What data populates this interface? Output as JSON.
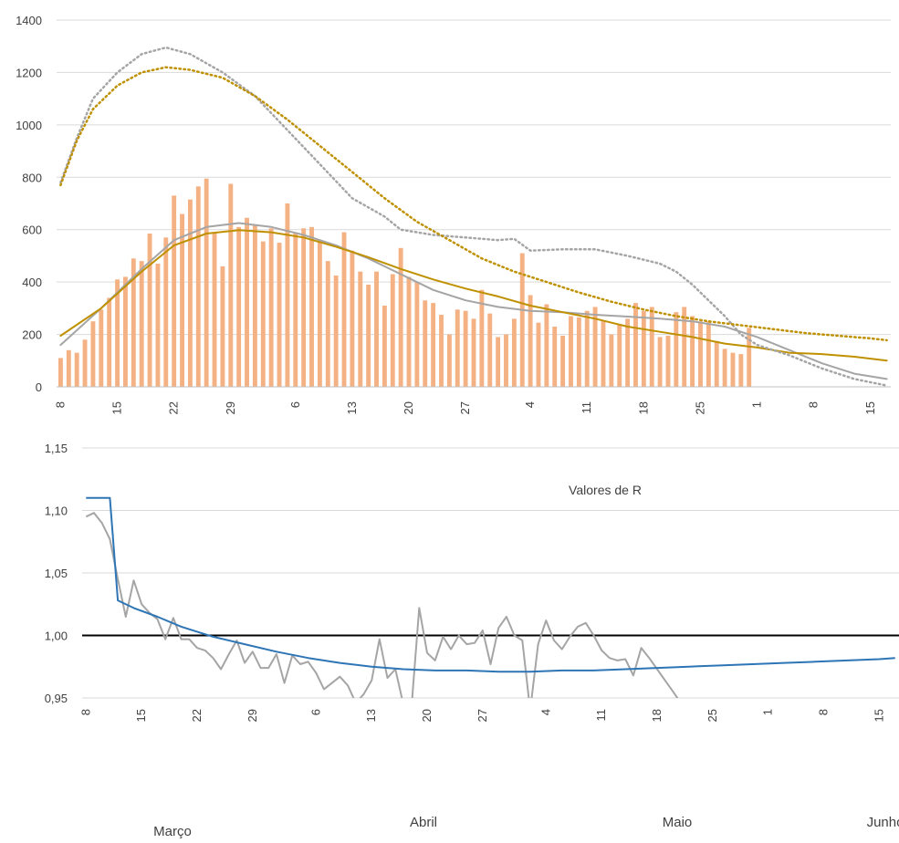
{
  "chart_data": [
    {
      "type": "bar",
      "title": "",
      "xlabel": "",
      "ylabel": "",
      "ylim": [
        0,
        1400
      ],
      "yticks": [
        0,
        200,
        400,
        600,
        800,
        1000,
        1200,
        1400
      ],
      "x_tick_labels": [
        "8",
        "15",
        "22",
        "29",
        "6",
        "13",
        "20",
        "27",
        "4",
        "11",
        "18",
        "25",
        "1",
        "8",
        "15"
      ],
      "x_tick_day_index": [
        0,
        7,
        14,
        21,
        29,
        36,
        43,
        50,
        58,
        65,
        72,
        79,
        86,
        93,
        100
      ],
      "grid": true,
      "legend": "none",
      "colors": {
        "bars": "#f4b183",
        "grey": "#a5a5a5",
        "gold": "#bf9000",
        "dotted_grey": "#a5a5a5",
        "dotted_gold": "#bf9000",
        "grid": "#d9d9d9"
      },
      "bars": [
        110,
        140,
        130,
        180,
        250,
        295,
        340,
        410,
        420,
        490,
        480,
        585,
        470,
        570,
        730,
        660,
        715,
        765,
        795,
        590,
        460,
        775,
        610,
        645,
        620,
        555,
        605,
        550,
        700,
        585,
        605,
        610,
        560,
        480,
        425,
        590,
        520,
        440,
        390,
        440,
        310,
        430,
        530,
        420,
        400,
        330,
        320,
        275,
        200,
        295,
        290,
        260,
        370,
        280,
        190,
        200,
        260,
        510,
        350,
        245,
        315,
        230,
        195,
        270,
        265,
        290,
        305,
        250,
        200,
        240,
        260,
        320,
        290,
        305,
        190,
        195,
        285,
        305,
        270,
        250,
        250,
        175,
        145,
        130,
        125,
        225
      ],
      "series": [
        {
          "style": "solid-grey",
          "points": [
            [
              0,
              160
            ],
            [
              5,
              300
            ],
            [
              10,
              450
            ],
            [
              14,
              560
            ],
            [
              18,
              610
            ],
            [
              22,
              625
            ],
            [
              26,
              610
            ],
            [
              30,
              580
            ],
            [
              34,
              540
            ],
            [
              38,
              490
            ],
            [
              42,
              430
            ],
            [
              46,
              370
            ],
            [
              50,
              330
            ],
            [
              54,
              305
            ],
            [
              58,
              290
            ],
            [
              62,
              285
            ],
            [
              66,
              275
            ],
            [
              70,
              268
            ],
            [
              74,
              260
            ],
            [
              78,
              250
            ],
            [
              82,
              230
            ],
            [
              86,
              190
            ],
            [
              90,
              140
            ],
            [
              94,
              90
            ],
            [
              98,
              50
            ],
            [
              102,
              30
            ]
          ]
        },
        {
          "style": "solid-gold",
          "points": [
            [
              0,
              195
            ],
            [
              5,
              300
            ],
            [
              10,
              440
            ],
            [
              14,
              540
            ],
            [
              18,
              585
            ],
            [
              22,
              598
            ],
            [
              26,
              590
            ],
            [
              30,
              570
            ],
            [
              34,
              535
            ],
            [
              38,
              495
            ],
            [
              42,
              450
            ],
            [
              46,
              410
            ],
            [
              50,
              375
            ],
            [
              54,
              345
            ],
            [
              58,
              310
            ],
            [
              62,
              285
            ],
            [
              66,
              260
            ],
            [
              70,
              230
            ],
            [
              74,
              210
            ],
            [
              78,
              190
            ],
            [
              82,
              165
            ],
            [
              86,
              150
            ],
            [
              90,
              130
            ],
            [
              94,
              125
            ],
            [
              98,
              115
            ],
            [
              102,
              100
            ]
          ]
        },
        {
          "style": "dotted-grey",
          "points": [
            [
              0,
              780
            ],
            [
              2,
              950
            ],
            [
              4,
              1100
            ],
            [
              7,
              1200
            ],
            [
              10,
              1270
            ],
            [
              13,
              1295
            ],
            [
              16,
              1270
            ],
            [
              20,
              1200
            ],
            [
              24,
              1110
            ],
            [
              28,
              980
            ],
            [
              32,
              850
            ],
            [
              36,
              720
            ],
            [
              40,
              650
            ],
            [
              42,
              600
            ],
            [
              46,
              580
            ],
            [
              50,
              570
            ],
            [
              54,
              560
            ],
            [
              56,
              565
            ],
            [
              58,
              520
            ],
            [
              62,
              525
            ],
            [
              66,
              525
            ],
            [
              70,
              500
            ],
            [
              74,
              470
            ],
            [
              76,
              440
            ],
            [
              78,
              390
            ],
            [
              80,
              330
            ],
            [
              82,
              270
            ],
            [
              84,
              200
            ],
            [
              86,
              160
            ],
            [
              90,
              120
            ],
            [
              94,
              70
            ],
            [
              98,
              30
            ],
            [
              102,
              5
            ]
          ]
        },
        {
          "style": "dotted-gold",
          "points": [
            [
              0,
              770
            ],
            [
              2,
              940
            ],
            [
              4,
              1060
            ],
            [
              7,
              1150
            ],
            [
              10,
              1200
            ],
            [
              13,
              1220
            ],
            [
              16,
              1210
            ],
            [
              20,
              1180
            ],
            [
              24,
              1110
            ],
            [
              28,
              1020
            ],
            [
              32,
              920
            ],
            [
              36,
              820
            ],
            [
              40,
              720
            ],
            [
              44,
              630
            ],
            [
              48,
              560
            ],
            [
              52,
              490
            ],
            [
              56,
              440
            ],
            [
              60,
              400
            ],
            [
              64,
              360
            ],
            [
              68,
              325
            ],
            [
              72,
              295
            ],
            [
              76,
              270
            ],
            [
              80,
              250
            ],
            [
              84,
              235
            ],
            [
              88,
              220
            ],
            [
              92,
              205
            ],
            [
              96,
              195
            ],
            [
              100,
              185
            ],
            [
              102,
              178
            ]
          ]
        }
      ]
    },
    {
      "type": "line",
      "title": "Valores de R",
      "xlabel": "",
      "ylabel": "",
      "ylim": [
        0.95,
        1.15
      ],
      "yticks": [
        "0,95",
        "1,00",
        "1,05",
        "1,10",
        "1,15"
      ],
      "ytick_values": [
        0.95,
        1.0,
        1.05,
        1.1,
        1.15
      ],
      "x_tick_labels": [
        "8",
        "15",
        "22",
        "29",
        "6",
        "13",
        "20",
        "27",
        "4",
        "11",
        "18",
        "25",
        "1",
        "8",
        "15"
      ],
      "x_tick_day_index": [
        0,
        7,
        14,
        21,
        29,
        36,
        43,
        50,
        58,
        65,
        72,
        79,
        86,
        93,
        100
      ],
      "month_labels": [
        "Março",
        "Abril",
        "Maio",
        "Junho"
      ],
      "reference_line": 1.0,
      "grid": true,
      "legend": "none",
      "colors": {
        "blue": "#2e75b6",
        "grey": "#a5a5a5",
        "reference": "#000000",
        "grid": "#d9d9d9"
      },
      "series": [
        {
          "style": "blue",
          "points": [
            [
              0,
              1.11
            ],
            [
              3,
              1.11
            ],
            [
              4,
              1.028
            ],
            [
              6,
              1.022
            ],
            [
              9,
              1.015
            ],
            [
              12,
              1.007
            ],
            [
              16,
              0.999
            ],
            [
              20,
              0.993
            ],
            [
              24,
              0.987
            ],
            [
              28,
              0.982
            ],
            [
              32,
              0.978
            ],
            [
              36,
              0.975
            ],
            [
              40,
              0.973
            ],
            [
              44,
              0.972
            ],
            [
              48,
              0.972
            ],
            [
              52,
              0.971
            ],
            [
              56,
              0.971
            ],
            [
              60,
              0.972
            ],
            [
              64,
              0.972
            ],
            [
              68,
              0.973
            ],
            [
              72,
              0.974
            ],
            [
              76,
              0.975
            ],
            [
              80,
              0.976
            ],
            [
              84,
              0.977
            ],
            [
              88,
              0.978
            ],
            [
              92,
              0.979
            ],
            [
              96,
              0.98
            ],
            [
              100,
              0.981
            ],
            [
              102,
              0.982
            ]
          ]
        },
        {
          "style": "grey",
          "points": [
            [
              0,
              1.095
            ],
            [
              1,
              1.098
            ],
            [
              2,
              1.09
            ],
            [
              3,
              1.077
            ],
            [
              4,
              1.045
            ],
            [
              5,
              1.015
            ],
            [
              6,
              1.044
            ],
            [
              7,
              1.025
            ],
            [
              8,
              1.018
            ],
            [
              9,
              1.013
            ],
            [
              10,
              0.997
            ],
            [
              11,
              1.014
            ],
            [
              12,
              0.997
            ],
            [
              13,
              0.997
            ],
            [
              14,
              0.99
            ],
            [
              15,
              0.988
            ],
            [
              16,
              0.982
            ],
            [
              17,
              0.973
            ],
            [
              18,
              0.985
            ],
            [
              19,
              0.996
            ],
            [
              20,
              0.978
            ],
            [
              21,
              0.987
            ],
            [
              22,
              0.974
            ],
            [
              23,
              0.974
            ],
            [
              24,
              0.985
            ],
            [
              25,
              0.962
            ],
            [
              26,
              0.984
            ],
            [
              27,
              0.977
            ],
            [
              28,
              0.979
            ],
            [
              29,
              0.97
            ],
            [
              30,
              0.957
            ],
            [
              31,
              0.962
            ],
            [
              32,
              0.967
            ],
            [
              33,
              0.96
            ],
            [
              34,
              0.946
            ],
            [
              35,
              0.953
            ],
            [
              36,
              0.964
            ],
            [
              37,
              0.997
            ],
            [
              38,
              0.966
            ],
            [
              39,
              0.973
            ],
            [
              40,
              0.945
            ],
            [
              41,
              0.94
            ],
            [
              42,
              1.022
            ],
            [
              43,
              0.986
            ],
            [
              44,
              0.98
            ],
            [
              45,
              0.999
            ],
            [
              46,
              0.989
            ],
            [
              47,
              1.0
            ],
            [
              48,
              0.993
            ],
            [
              49,
              0.994
            ],
            [
              50,
              1.004
            ],
            [
              51,
              0.977
            ],
            [
              52,
              1.006
            ],
            [
              53,
              1.015
            ],
            [
              54,
              1.0
            ],
            [
              55,
              0.996
            ],
            [
              56,
              0.94
            ],
            [
              57,
              0.993
            ],
            [
              58,
              1.012
            ],
            [
              59,
              0.996
            ],
            [
              60,
              0.989
            ],
            [
              61,
              0.999
            ],
            [
              62,
              1.007
            ],
            [
              63,
              1.01
            ],
            [
              64,
              1.0
            ],
            [
              65,
              0.988
            ],
            [
              66,
              0.982
            ],
            [
              67,
              0.98
            ],
            [
              68,
              0.981
            ],
            [
              69,
              0.968
            ],
            [
              70,
              0.99
            ],
            [
              71,
              0.982
            ],
            [
              72,
              0.973
            ],
            [
              73,
              0.964
            ],
            [
              74,
              0.955
            ],
            [
              75,
              0.946
            ]
          ]
        }
      ]
    }
  ]
}
